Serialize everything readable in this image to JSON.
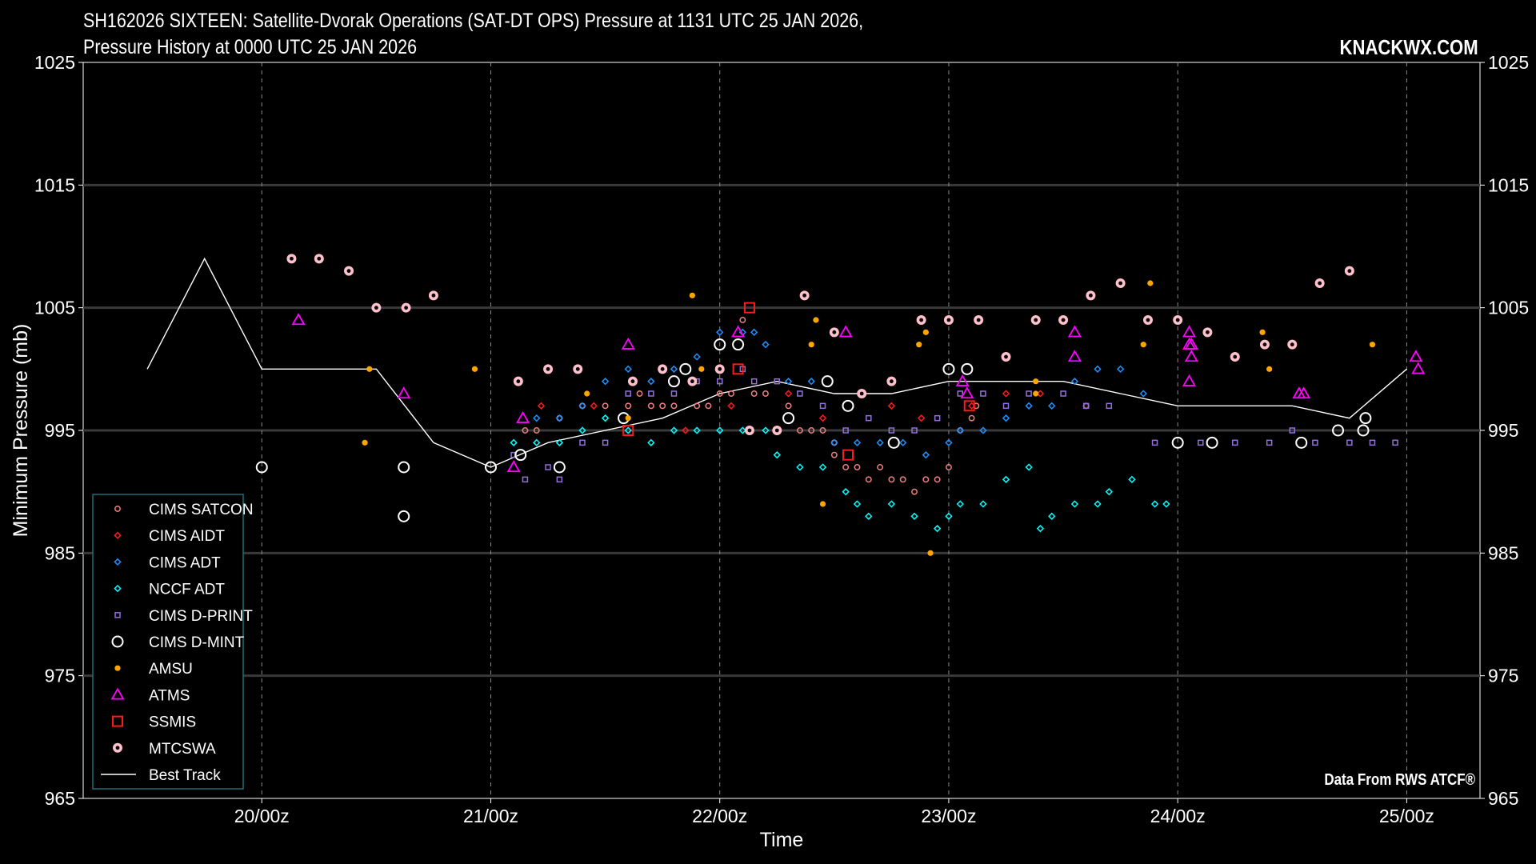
{
  "header": {
    "title_line1": "SH162026 SIXTEEN: Satellite-Dvorak Operations (SAT-DT OPS) Pressure at 1131 UTC 25 JAN 2026,",
    "title_line2": "Pressure History at 0000 UTC 25 JAN 2026",
    "brand": "KNACKWX.COM",
    "source": "Data From RWS ATCF®"
  },
  "colors": {
    "background": "#000000",
    "grid": "#3a3a3a",
    "satcon": "#f08080",
    "aidt": "#ff1a1a",
    "cims_adt": "#1e90ff",
    "nccf_adt": "#00ffff",
    "dprint": "#9370db",
    "dmint": "#ffffff",
    "amsu": "#ffa500",
    "atms": "#ff00ff",
    "ssmis": "#ff1a1a",
    "mtcswa": "#ffc0cb",
    "best_track": "#ffffff"
  },
  "chart_data": {
    "type": "scatter",
    "title": "SH162026 SIXTEEN: Satellite-Dvorak Operations (SAT-DT OPS) Pressure at 1131 UTC 25 JAN 2026, Pressure History at 0000 UTC 25 JAN 2026",
    "xlabel": "Time",
    "ylabel": "Minimum Pressure (mb)",
    "x_units": "days since 20/00z",
    "xlim": [
      -0.78,
      5.32
    ],
    "ylim": [
      965,
      1025
    ],
    "x_ticks": [
      0,
      1,
      2,
      3,
      4,
      5
    ],
    "x_tick_labels": [
      "20/00z",
      "21/00z",
      "22/00z",
      "23/00z",
      "24/00z",
      "25/00z"
    ],
    "y_ticks": [
      965,
      975,
      985,
      995,
      1005,
      1015,
      1025
    ],
    "y_tick_labels": [
      "965",
      "975",
      "985",
      "995",
      "1005",
      "1015",
      "1025"
    ],
    "grid": true,
    "legend_position": "bottom-left",
    "series": [
      {
        "name": "CIMS SATCON",
        "marker": "circle-small",
        "points": [
          [
            1.15,
            995
          ],
          [
            1.2,
            995
          ],
          [
            1.3,
            996
          ],
          [
            1.4,
            997
          ],
          [
            1.5,
            997
          ],
          [
            1.6,
            997
          ],
          [
            1.65,
            998
          ],
          [
            1.7,
            997
          ],
          [
            1.75,
            997
          ],
          [
            1.8,
            997
          ],
          [
            1.9,
            997
          ],
          [
            1.95,
            997
          ],
          [
            2.0,
            998
          ],
          [
            2.05,
            998
          ],
          [
            2.1,
            1004
          ],
          [
            2.15,
            998
          ],
          [
            2.2,
            998
          ],
          [
            2.3,
            997
          ],
          [
            2.35,
            995
          ],
          [
            2.4,
            995
          ],
          [
            2.45,
            995
          ],
          [
            2.5,
            994
          ],
          [
            2.5,
            993
          ],
          [
            2.55,
            992
          ],
          [
            2.6,
            992
          ],
          [
            2.65,
            991
          ],
          [
            2.7,
            992
          ],
          [
            2.75,
            991
          ],
          [
            2.8,
            991
          ],
          [
            2.85,
            990
          ],
          [
            2.9,
            991
          ],
          [
            2.95,
            991
          ],
          [
            3.0,
            992
          ],
          [
            3.05,
            995
          ],
          [
            3.1,
            996
          ],
          [
            3.12,
            997
          ]
        ]
      },
      {
        "name": "CIMS AIDT",
        "marker": "diamond-small",
        "points": [
          [
            1.22,
            997
          ],
          [
            1.45,
            997
          ],
          [
            1.85,
            995
          ],
          [
            2.05,
            997
          ],
          [
            2.3,
            998
          ],
          [
            2.45,
            996
          ],
          [
            2.75,
            997
          ],
          [
            2.88,
            996
          ],
          [
            3.1,
            997
          ],
          [
            3.25,
            998
          ],
          [
            3.4,
            998
          ],
          [
            3.6,
            997
          ]
        ]
      },
      {
        "name": "CIMS ADT",
        "marker": "diamond-small",
        "points": [
          [
            1.2,
            996
          ],
          [
            1.3,
            996
          ],
          [
            1.4,
            997
          ],
          [
            1.5,
            999
          ],
          [
            1.6,
            1000
          ],
          [
            1.7,
            999
          ],
          [
            1.8,
            1000
          ],
          [
            1.9,
            1001
          ],
          [
            2.0,
            1003
          ],
          [
            2.1,
            1003
          ],
          [
            2.15,
            1003
          ],
          [
            2.2,
            1002
          ],
          [
            2.3,
            999
          ],
          [
            2.4,
            999
          ],
          [
            2.5,
            994
          ],
          [
            2.6,
            994
          ],
          [
            2.7,
            994
          ],
          [
            2.8,
            994
          ],
          [
            2.9,
            993
          ],
          [
            3.0,
            994
          ],
          [
            3.05,
            995
          ],
          [
            3.15,
            995
          ],
          [
            3.25,
            996
          ],
          [
            3.35,
            997
          ],
          [
            3.45,
            997
          ],
          [
            3.55,
            999
          ],
          [
            3.65,
            1000
          ],
          [
            3.75,
            1000
          ],
          [
            3.85,
            998
          ]
        ]
      },
      {
        "name": "NCCF ADT",
        "marker": "diamond-small",
        "points": [
          [
            1.1,
            994
          ],
          [
            1.2,
            994
          ],
          [
            1.3,
            994
          ],
          [
            1.4,
            995
          ],
          [
            1.5,
            996
          ],
          [
            1.6,
            995
          ],
          [
            1.7,
            994
          ],
          [
            1.8,
            995
          ],
          [
            1.9,
            995
          ],
          [
            2.0,
            995
          ],
          [
            2.1,
            995
          ],
          [
            2.2,
            995
          ],
          [
            2.25,
            993
          ],
          [
            2.35,
            992
          ],
          [
            2.45,
            992
          ],
          [
            2.55,
            990
          ],
          [
            2.6,
            989
          ],
          [
            2.65,
            988
          ],
          [
            2.75,
            989
          ],
          [
            2.85,
            988
          ],
          [
            2.95,
            987
          ],
          [
            3.0,
            988
          ],
          [
            3.05,
            989
          ],
          [
            3.15,
            989
          ],
          [
            3.25,
            991
          ],
          [
            3.35,
            992
          ],
          [
            3.4,
            987
          ],
          [
            3.45,
            988
          ],
          [
            3.55,
            989
          ],
          [
            3.65,
            989
          ],
          [
            3.7,
            990
          ],
          [
            3.8,
            991
          ],
          [
            3.9,
            989
          ],
          [
            3.95,
            989
          ]
        ]
      },
      {
        "name": "CIMS D-PRINT",
        "marker": "square-small",
        "points": [
          [
            1.1,
            993
          ],
          [
            1.15,
            991
          ],
          [
            1.25,
            992
          ],
          [
            1.3,
            991
          ],
          [
            1.4,
            994
          ],
          [
            1.5,
            994
          ],
          [
            1.6,
            998
          ],
          [
            1.7,
            998
          ],
          [
            1.8,
            998
          ],
          [
            1.9,
            999
          ],
          [
            2.0,
            999
          ],
          [
            2.1,
            1000
          ],
          [
            2.15,
            999
          ],
          [
            2.25,
            999
          ],
          [
            2.35,
            998
          ],
          [
            2.45,
            997
          ],
          [
            2.55,
            995
          ],
          [
            2.65,
            996
          ],
          [
            2.75,
            995
          ],
          [
            2.85,
            995
          ],
          [
            2.95,
            996
          ],
          [
            3.05,
            998
          ],
          [
            3.15,
            998
          ],
          [
            3.25,
            997
          ],
          [
            3.35,
            998
          ],
          [
            3.5,
            998
          ],
          [
            3.6,
            997
          ],
          [
            3.7,
            997
          ],
          [
            3.9,
            994
          ],
          [
            4.1,
            994
          ],
          [
            4.25,
            994
          ],
          [
            4.4,
            994
          ],
          [
            4.5,
            995
          ],
          [
            4.6,
            994
          ],
          [
            4.75,
            994
          ],
          [
            4.85,
            994
          ],
          [
            4.95,
            994
          ]
        ]
      },
      {
        "name": "CIMS D-MINT",
        "marker": "circle-large",
        "points": [
          [
            0.0,
            992
          ],
          [
            0.62,
            992
          ],
          [
            0.62,
            988
          ],
          [
            1.0,
            992
          ],
          [
            1.13,
            993
          ],
          [
            1.3,
            992
          ],
          [
            1.58,
            996
          ],
          [
            1.8,
            999
          ],
          [
            1.85,
            1000
          ],
          [
            2.0,
            1002
          ],
          [
            2.08,
            1002
          ],
          [
            2.3,
            996
          ],
          [
            2.47,
            999
          ],
          [
            2.56,
            997
          ],
          [
            2.76,
            994
          ],
          [
            3.0,
            1000
          ],
          [
            3.08,
            1000
          ],
          [
            4.0,
            994
          ],
          [
            4.15,
            994
          ],
          [
            4.54,
            994
          ],
          [
            4.7,
            995
          ],
          [
            4.81,
            995
          ],
          [
            4.82,
            996
          ]
        ]
      },
      {
        "name": "AMSU",
        "marker": "dot",
        "points": [
          [
            0.45,
            994
          ],
          [
            0.47,
            1000
          ],
          [
            0.93,
            1000
          ],
          [
            1.42,
            998
          ],
          [
            1.6,
            996
          ],
          [
            1.88,
            1006
          ],
          [
            1.92,
            1000
          ],
          [
            2.4,
            1002
          ],
          [
            2.42,
            1004
          ],
          [
            2.45,
            989
          ],
          [
            2.87,
            1002
          ],
          [
            2.9,
            1003
          ],
          [
            2.92,
            985
          ],
          [
            3.38,
            999
          ],
          [
            3.38,
            998
          ],
          [
            3.85,
            1002
          ],
          [
            3.88,
            1007
          ],
          [
            4.37,
            1003
          ],
          [
            4.4,
            1000
          ],
          [
            4.85,
            1002
          ]
        ]
      },
      {
        "name": "ATMS",
        "marker": "triangle",
        "points": [
          [
            0.16,
            1004
          ],
          [
            0.62,
            998
          ],
          [
            1.1,
            992
          ],
          [
            1.14,
            996
          ],
          [
            1.6,
            1002
          ],
          [
            2.08,
            1003
          ],
          [
            2.55,
            1003
          ],
          [
            3.06,
            999
          ],
          [
            3.08,
            998
          ],
          [
            3.55,
            1003
          ],
          [
            3.55,
            1001
          ],
          [
            4.05,
            1003
          ],
          [
            4.05,
            1002
          ],
          [
            4.06,
            1002
          ],
          [
            4.06,
            1001
          ],
          [
            4.05,
            999
          ],
          [
            4.53,
            998
          ],
          [
            4.55,
            998
          ],
          [
            5.04,
            1001
          ],
          [
            5.05,
            1000
          ]
        ]
      },
      {
        "name": "SSMIS",
        "marker": "square-large",
        "points": [
          [
            1.6,
            995
          ],
          [
            2.08,
            1000
          ],
          [
            2.13,
            1005
          ],
          [
            2.56,
            993
          ],
          [
            3.09,
            997
          ]
        ]
      },
      {
        "name": "MTCSWA",
        "marker": "ring",
        "points": [
          [
            0.13,
            1009
          ],
          [
            0.25,
            1009
          ],
          [
            0.38,
            1008
          ],
          [
            0.5,
            1005
          ],
          [
            0.63,
            1005
          ],
          [
            0.75,
            1006
          ],
          [
            1.12,
            999
          ],
          [
            1.25,
            1000
          ],
          [
            1.38,
            1000
          ],
          [
            1.62,
            999
          ],
          [
            1.75,
            1000
          ],
          [
            1.88,
            999
          ],
          [
            2.0,
            1000
          ],
          [
            2.13,
            995
          ],
          [
            2.25,
            995
          ],
          [
            2.37,
            1006
          ],
          [
            2.5,
            1003
          ],
          [
            2.62,
            998
          ],
          [
            2.75,
            999
          ],
          [
            2.88,
            1004
          ],
          [
            3.0,
            1004
          ],
          [
            3.13,
            1004
          ],
          [
            3.25,
            1001
          ],
          [
            3.38,
            1004
          ],
          [
            3.5,
            1004
          ],
          [
            3.62,
            1006
          ],
          [
            3.75,
            1007
          ],
          [
            3.87,
            1004
          ],
          [
            4.0,
            1004
          ],
          [
            4.13,
            1003
          ],
          [
            4.25,
            1001
          ],
          [
            4.38,
            1002
          ],
          [
            4.5,
            1002
          ],
          [
            4.62,
            1007
          ],
          [
            4.75,
            1008
          ]
        ]
      }
    ],
    "best_track": {
      "name": "Best Track",
      "points": [
        [
          -0.5,
          1000
        ],
        [
          -0.25,
          1009
        ],
        [
          0.0,
          1000
        ],
        [
          0.25,
          1000
        ],
        [
          0.5,
          1000
        ],
        [
          0.75,
          994
        ],
        [
          1.0,
          992
        ],
        [
          1.25,
          994
        ],
        [
          1.5,
          995
        ],
        [
          1.75,
          996
        ],
        [
          2.0,
          998
        ],
        [
          2.25,
          999
        ],
        [
          2.5,
          998
        ],
        [
          2.75,
          998
        ],
        [
          3.0,
          999
        ],
        [
          3.25,
          999
        ],
        [
          3.5,
          999
        ],
        [
          3.75,
          998
        ],
        [
          4.0,
          997
        ],
        [
          4.25,
          997
        ],
        [
          4.5,
          997
        ],
        [
          4.75,
          996
        ],
        [
          5.0,
          1000
        ]
      ]
    }
  }
}
